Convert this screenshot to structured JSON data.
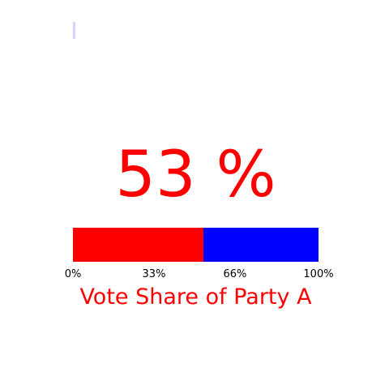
{
  "chart_data": {
    "type": "bar",
    "title": "Vote Share of Party A",
    "value_display": "53 %",
    "value": 53,
    "range": [
      0,
      100
    ],
    "segments": [
      {
        "value": 53,
        "color": "#ff0000"
      },
      {
        "value": 47,
        "color": "#0000ff"
      }
    ],
    "ticks": [
      {
        "value": 0,
        "label": "0%"
      },
      {
        "value": 33,
        "label": "33%"
      },
      {
        "value": 66,
        "label": "66%"
      },
      {
        "value": 100,
        "label": "100%"
      }
    ],
    "text_color": "#ff0000",
    "grid": false
  }
}
